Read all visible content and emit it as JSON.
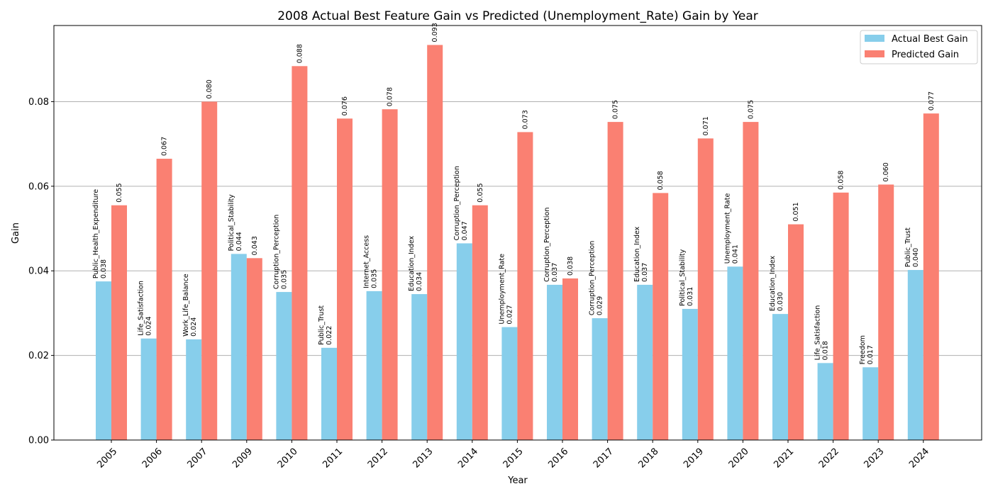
{
  "chart_data": {
    "type": "bar",
    "title": "2008 Actual Best Feature Gain vs Predicted (Unemployment_Rate) Gain by Year",
    "xlabel": "Year",
    "ylabel": "Gain",
    "ylim": [
      0,
      0.098
    ],
    "yticks": [
      "0.00",
      "0.02",
      "0.04",
      "0.06",
      "0.08"
    ],
    "grid": "y-major",
    "legend_position": "top-right",
    "categories": [
      "2005",
      "2006",
      "2007",
      "2009",
      "2010",
      "2011",
      "2012",
      "2013",
      "2014",
      "2015",
      "2016",
      "2017",
      "2018",
      "2019",
      "2020",
      "2021",
      "2022",
      "2023",
      "2024"
    ],
    "series": [
      {
        "name": "Actual Best Gain",
        "color": "#87ceeb",
        "values": [
          0.0375,
          0.024,
          0.0238,
          0.044,
          0.035,
          0.0218,
          0.0352,
          0.0345,
          0.0465,
          0.0267,
          0.0367,
          0.0288,
          0.0367,
          0.031,
          0.041,
          0.0298,
          0.0182,
          0.0172,
          0.0402
        ],
        "value_labels": [
          "0.038",
          "0.024",
          "0.024",
          "0.044",
          "0.035",
          "0.022",
          "0.035",
          "0.034",
          "0.047",
          "0.027",
          "0.037",
          "0.029",
          "0.037",
          "0.031",
          "0.041",
          "0.030",
          "0.018",
          "0.017",
          "0.040"
        ],
        "feature_labels": [
          "Public_Health_Expenditure",
          "Life_Satisfaction",
          "Work_Life_Balance",
          "Political_Stability",
          "Corruption_Perception",
          "Public_Trust",
          "Internet_Access",
          "Education_Index",
          "Corruption_Perception",
          "Unemployment_Rate",
          "Corruption_Perception",
          "Corruption_Perception",
          "Education_Index",
          "Political_Stability",
          "Unemployment_Rate",
          "Education_Index",
          "Life_Satisfaction",
          "Freedom",
          "Public_Trust"
        ]
      },
      {
        "name": "Predicted Gain",
        "color": "#fa8072",
        "values": [
          0.0555,
          0.0665,
          0.08,
          0.043,
          0.0884,
          0.076,
          0.0782,
          0.0934,
          0.0555,
          0.0728,
          0.0382,
          0.0752,
          0.0584,
          0.0713,
          0.0752,
          0.051,
          0.0585,
          0.0604,
          0.0772
        ],
        "value_labels": [
          "0.055",
          "0.067",
          "0.080",
          "0.043",
          "0.088",
          "0.076",
          "0.078",
          "0.093",
          "0.055",
          "0.073",
          "0.038",
          "0.075",
          "0.058",
          "0.071",
          "0.075",
          "0.051",
          "0.058",
          "0.060",
          "0.077"
        ]
      }
    ]
  }
}
